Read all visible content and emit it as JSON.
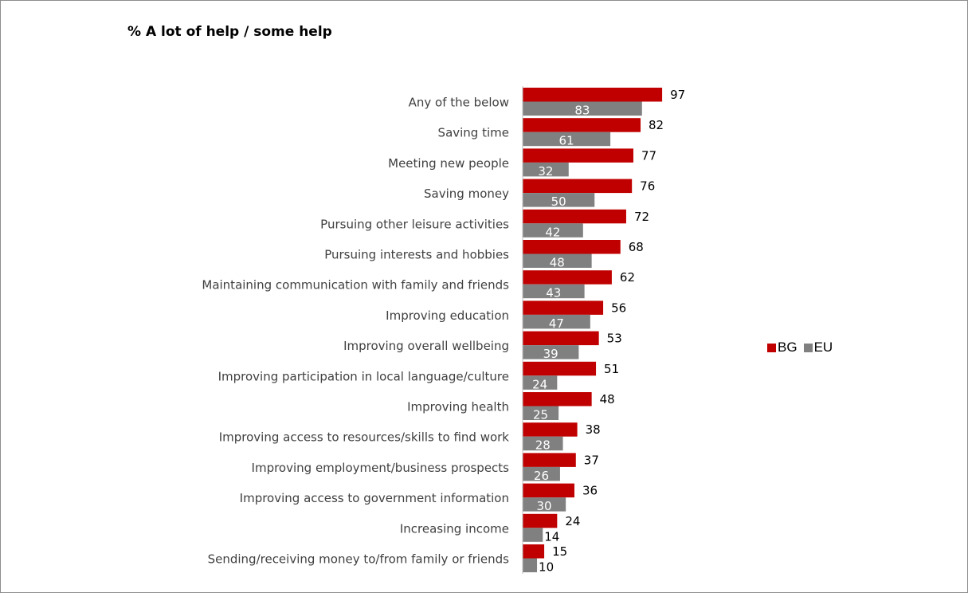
{
  "chart_data": {
    "type": "bar",
    "orientation": "horizontal",
    "title": "% A lot of help / some help",
    "categories": [
      "Any of the below",
      "Saving time",
      "Meeting new people",
      "Saving money",
      "Pursuing other leisure activities",
      "Pursuing interests and hobbies",
      "Maintaining communication with family and friends",
      "Improving education",
      "Improving overall wellbeing",
      "Improving participation in local language/culture",
      "Improving health",
      "Improving access to resources/skills  to find work",
      "Improving employment/business prospects",
      "Improving access to government information",
      "Increasing income",
      "Sending/receiving money to/from family or friends"
    ],
    "series": [
      {
        "name": "BG",
        "color": "#c00000",
        "values": [
          97,
          82,
          77,
          76,
          72,
          68,
          62,
          56,
          53,
          51,
          48,
          38,
          37,
          36,
          24,
          15
        ]
      },
      {
        "name": "EU",
        "color": "#808080",
        "values": [
          83,
          61,
          32,
          50,
          42,
          48,
          43,
          47,
          39,
          24,
          25,
          28,
          26,
          30,
          14,
          10
        ]
      }
    ],
    "xlim": [
      0,
      100
    ],
    "grid": false,
    "legend_position": "right"
  }
}
